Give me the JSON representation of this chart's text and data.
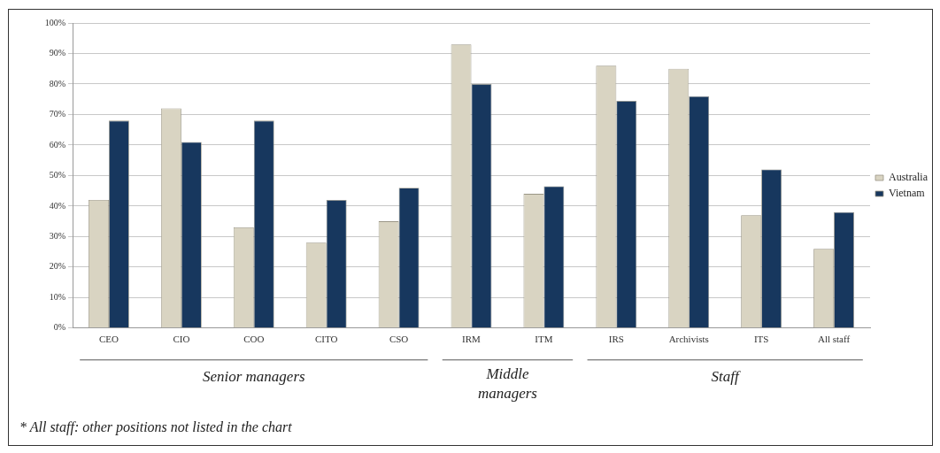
{
  "chart_data": {
    "type": "bar",
    "categories": [
      "CEO",
      "CIO",
      "COO",
      "CITO",
      "CSO",
      "IRM",
      "ITM",
      "IRS",
      "Archivists",
      "ITS",
      "All staff"
    ],
    "series": [
      {
        "name": "Australia",
        "color": "#d9d4c2",
        "values": [
          42,
          72,
          33,
          28,
          35,
          93,
          44,
          86,
          85,
          37,
          26
        ]
      },
      {
        "name": "Vietnam",
        "color": "#17375e",
        "values": [
          68,
          61,
          68,
          42,
          46,
          80,
          46.5,
          74.5,
          76,
          52,
          38
        ]
      }
    ],
    "ylim": [
      0,
      100
    ],
    "yticks": [
      {
        "value": 0,
        "label": "0%"
      },
      {
        "value": 10,
        "label": "10%"
      },
      {
        "value": 20,
        "label": "20%"
      },
      {
        "value": 30,
        "label": "30%"
      },
      {
        "value": 40,
        "label": "40%"
      },
      {
        "value": 50,
        "label": "50%"
      },
      {
        "value": 60,
        "label": "60%"
      },
      {
        "value": 70,
        "label": "70%"
      },
      {
        "value": 80,
        "label": "80%"
      },
      {
        "value": 90,
        "label": "90%"
      },
      {
        "value": 100,
        "label": "100%"
      }
    ],
    "grid": "y",
    "legend": "right",
    "annotations": [
      "Senior managers",
      "Middle managers",
      "Staff",
      "* All staff: other positions not listed in the chart"
    ]
  }
}
